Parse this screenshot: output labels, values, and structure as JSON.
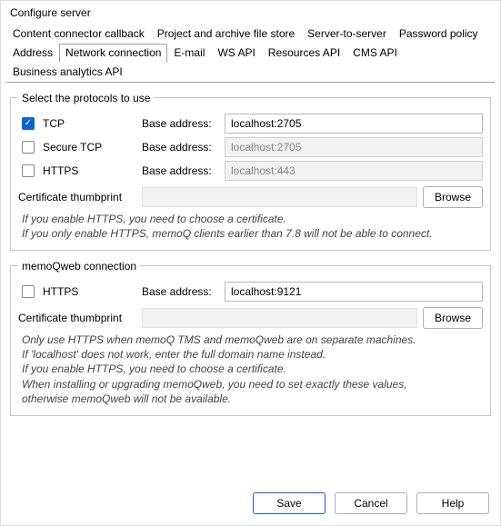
{
  "window": {
    "title": "Configure server"
  },
  "tabs": {
    "row1": [
      {
        "label": "Content connector callback"
      },
      {
        "label": "Project and archive file store"
      },
      {
        "label": "Server-to-server"
      },
      {
        "label": "Password policy"
      }
    ],
    "row2": [
      {
        "label": "Address"
      },
      {
        "label": "Network connection",
        "active": true
      },
      {
        "label": "E-mail"
      },
      {
        "label": "WS API"
      },
      {
        "label": "Resources API"
      },
      {
        "label": "CMS API"
      },
      {
        "label": "Business analytics API"
      }
    ]
  },
  "group1": {
    "legend": "Select the protocols to use",
    "rows": [
      {
        "name": "tcp",
        "label": "TCP",
        "checked": true,
        "baseLabel": "Base address:",
        "value": "localhost:2705",
        "enabled": true
      },
      {
        "name": "stcp",
        "label": "Secure TCP",
        "checked": false,
        "baseLabel": "Base address:",
        "value": "localhost:2705",
        "enabled": false
      },
      {
        "name": "https1",
        "label": "HTTPS",
        "checked": false,
        "baseLabel": "Base address:",
        "value": "localhost:443",
        "enabled": false
      }
    ],
    "thumb": {
      "label": "Certificate thumbprint",
      "browse": "Browse"
    },
    "note": "If you enable HTTPS, you need to choose a certificate.\nIf you only enable HTTPS, memoQ clients earlier than 7.8 will not be able to connect."
  },
  "group2": {
    "legend": "memoQweb connection",
    "rows": [
      {
        "name": "https2",
        "label": "HTTPS",
        "checked": false,
        "baseLabel": "Base address:",
        "value": "localhost:9121",
        "enabled": true
      }
    ],
    "thumb": {
      "label": "Certificate thumbprint",
      "browse": "Browse"
    },
    "note": "Only use HTTPS when memoQ TMS and memoQweb are on separate machines.\nIf 'localhost' does not work, enter the full domain name instead.\nIf you enable HTTPS, you need to choose a certificate.\nWhen installing or upgrading memoQweb, you need to set exactly these values,\notherwise memoQweb will not be available."
  },
  "footer": {
    "save": "Save",
    "cancel": "Cancel",
    "help": "Help"
  }
}
